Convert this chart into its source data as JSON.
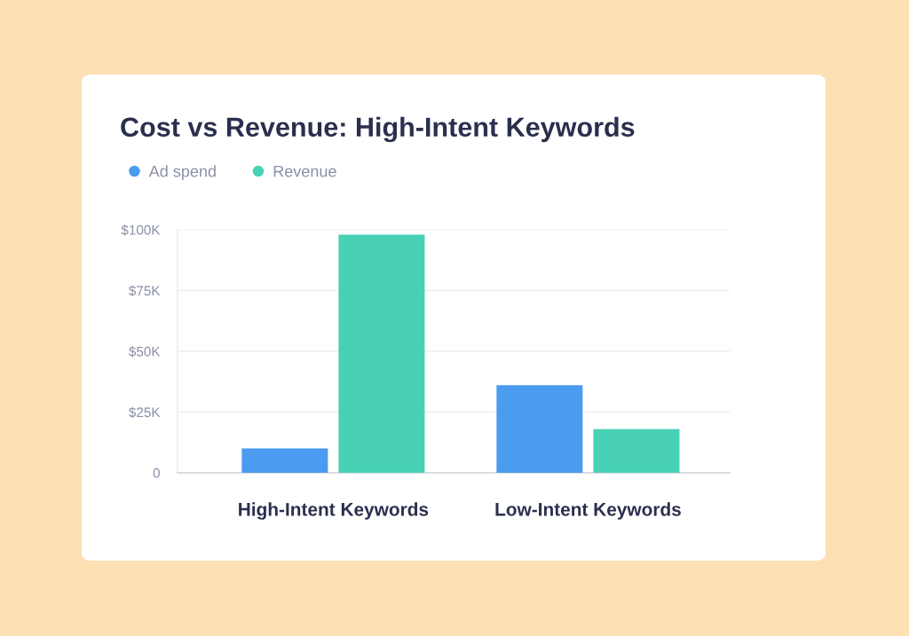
{
  "chart_data": {
    "type": "bar",
    "title": "Cost vs Revenue: High-Intent Keywords",
    "categories": [
      "High-Intent Keywords",
      "Low-Intent Keywords"
    ],
    "series": [
      {
        "name": "Ad spend",
        "color": "#4b9cf0",
        "values": [
          10,
          36
        ]
      },
      {
        "name": "Revenue",
        "color": "#48d1b5",
        "values": [
          98,
          18
        ]
      }
    ],
    "ylim": [
      0,
      100
    ],
    "yticks": [
      {
        "value": 0,
        "label": "0"
      },
      {
        "value": 25,
        "label": "$25K"
      },
      {
        "value": 50,
        "label": "$50K"
      },
      {
        "value": 75,
        "label": "$75K"
      },
      {
        "value": 100,
        "label": "$100K"
      }
    ],
    "grid": "y",
    "legend": "top left",
    "marker": "circle"
  }
}
